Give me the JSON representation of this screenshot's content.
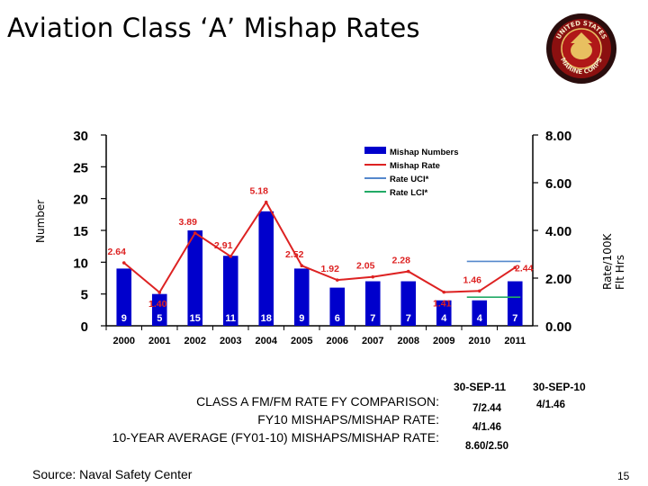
{
  "slide": {
    "title": "Aviation Class ‘A’ Mishap Rates",
    "seal_text": [
      "UNITED STATES",
      "MARINE CORPS"
    ],
    "source": "Source: Naval Safety Center",
    "page_number": "15"
  },
  "chart_data": {
    "type": "bar",
    "categories": [
      "2000",
      "2001",
      "2002",
      "2003",
      "2004",
      "2005",
      "2006",
      "2007",
      "2008",
      "2009",
      "2010",
      "2011"
    ],
    "series": [
      {
        "name": "Mishap Numbers",
        "kind": "bar",
        "axis": "left",
        "color": "#0000cc",
        "values": [
          9,
          5,
          15,
          11,
          18,
          9,
          6,
          7,
          7,
          4,
          4,
          7
        ],
        "labels": [
          "9",
          "5",
          "15",
          "11",
          "18",
          "9",
          "6",
          "7",
          "7",
          "4",
          "4",
          "7"
        ]
      },
      {
        "name": "Mishap Rate",
        "kind": "line",
        "axis": "right",
        "color": "#dd2222",
        "values": [
          2.64,
          1.4,
          3.89,
          2.91,
          5.18,
          2.52,
          1.92,
          2.05,
          2.28,
          1.41,
          1.46,
          2.44
        ],
        "labels": [
          "2.64",
          "1.40",
          "3.89",
          "2.91",
          "5.18",
          "2.52",
          "1.92",
          "2.05",
          "2.28",
          "1.41",
          "1.46",
          "2.44"
        ]
      },
      {
        "name": "Rate UCI*",
        "kind": "segment",
        "axis": "right",
        "color": "#5588cc",
        "from": "2010",
        "to": "2011",
        "value": 2.7
      },
      {
        "name": "Rate LCI*",
        "kind": "segment",
        "axis": "right",
        "color": "#22aa66",
        "from": "2010",
        "to": "2011",
        "value": 1.2
      }
    ],
    "xlabel": "",
    "ylabel": "Number",
    "y2label": "Rate/100K Flt Hrs",
    "ylim": [
      0,
      30
    ],
    "y2lim": [
      0,
      8
    ],
    "yticks": [
      0,
      5,
      10,
      15,
      20,
      25,
      30
    ],
    "y2ticks": [
      "0.00",
      "2.00",
      "4.00",
      "6.00",
      "8.00"
    ],
    "legend_position": "top-right",
    "grid": false
  },
  "comparison": {
    "line1": "CLASS A FM/FM RATE FY COMPARISON:",
    "line2": "FY10 MISHAPS/MISHAP RATE:",
    "line3": "10-YEAR AVERAGE (FY01-10) MISHAPS/MISHAP RATE:",
    "col1_header": "30-SEP-11",
    "col1_values": [
      "7/2.44",
      "4/1.46",
      "8.60/2.50"
    ],
    "col2_header": "30-SEP-10",
    "col2_values": [
      "4/1.46"
    ]
  }
}
